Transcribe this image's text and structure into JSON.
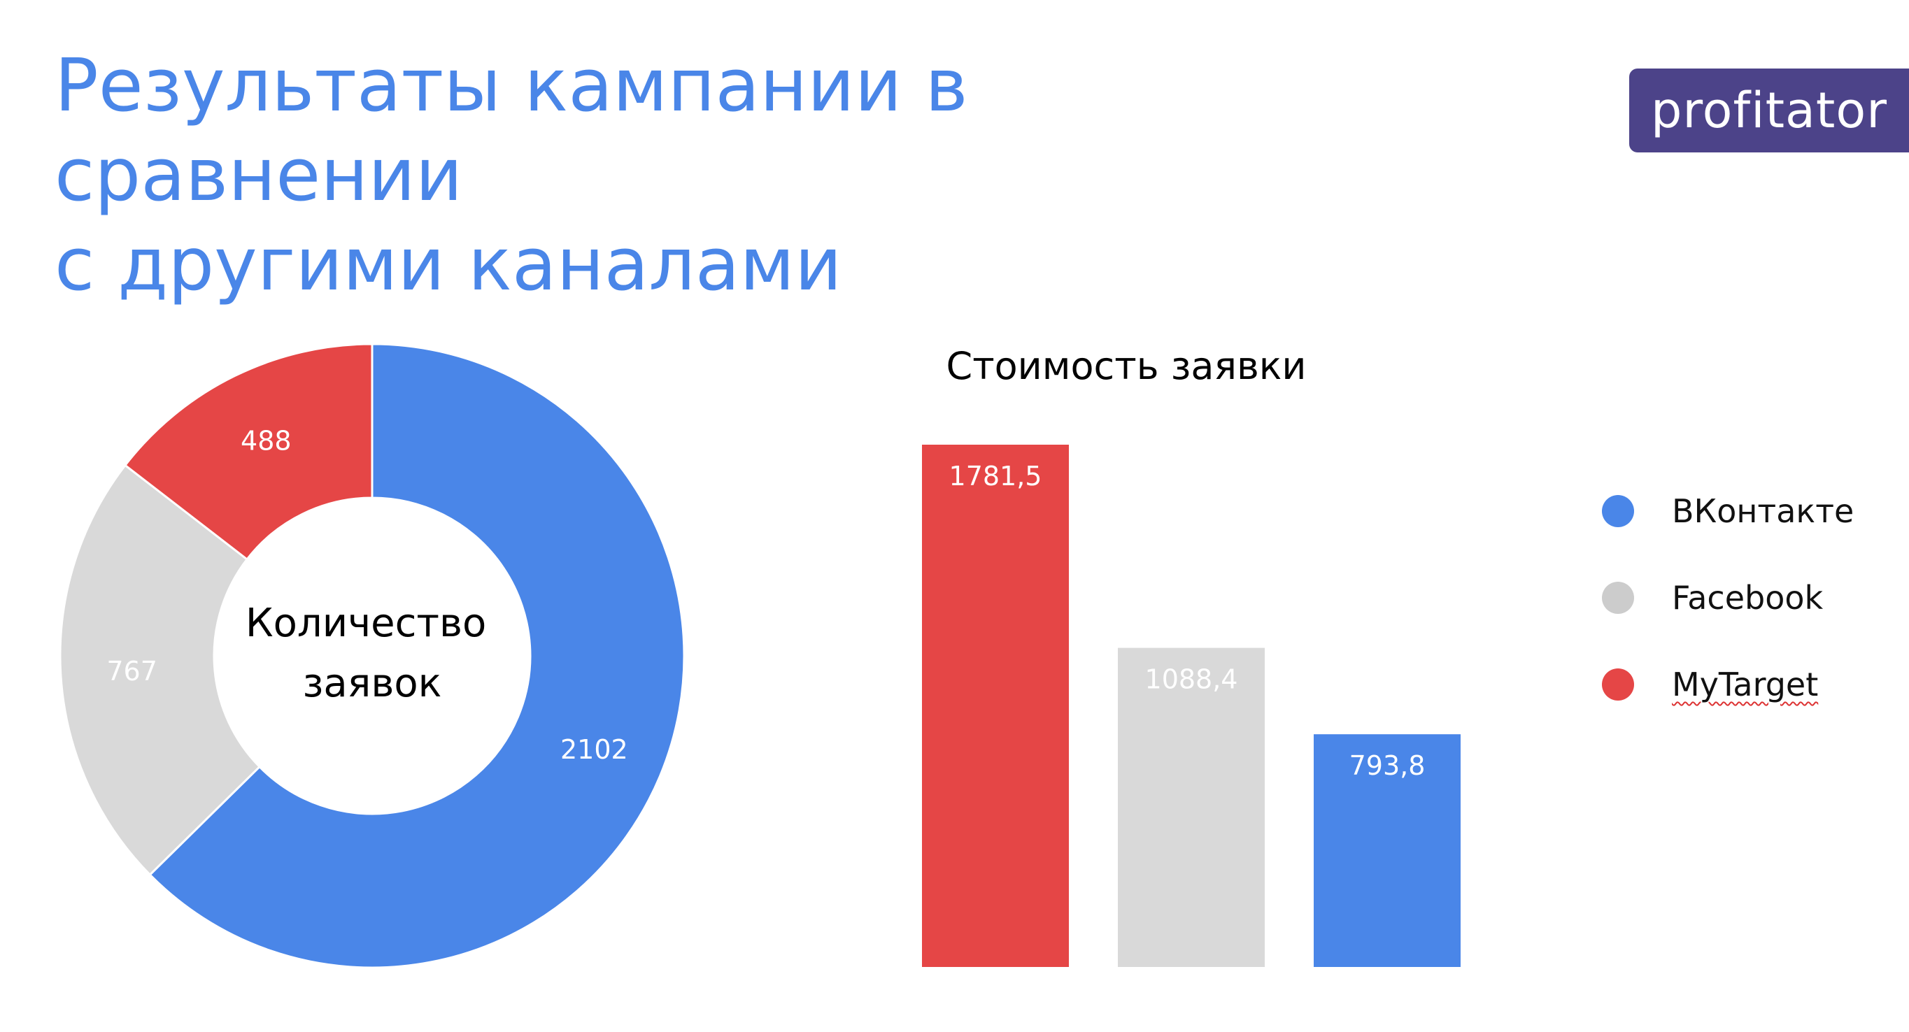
{
  "slide": {
    "title": "Результаты кампании в сравнении с другими каналами",
    "logo_text": "profitator"
  },
  "colors": {
    "title": "#4a86e8",
    "logo_bg": "#4c4389",
    "vkontakte": "#4a86e8",
    "facebook": "#d9d9d9",
    "mytarget": "#e54646"
  },
  "legend": [
    {
      "label": "ВКонтакте",
      "color": "#4a86e8"
    },
    {
      "label": "Facebook",
      "color": "#cccccc"
    },
    {
      "label": "MyTarget",
      "color": "#e54646"
    }
  ],
  "chart_data": [
    {
      "type": "pie",
      "title": "Количество заявок",
      "categories": [
        "ВКонтакте",
        "Facebook",
        "MyTarget"
      ],
      "values": [
        2102,
        767,
        488
      ],
      "value_labels": [
        "2102",
        "767",
        "488"
      ],
      "colors": [
        "#4a86e8",
        "#d9d9d9",
        "#e54646"
      ],
      "label_colors": [
        "#ffffff",
        "#ffffff",
        "#ffffff"
      ]
    },
    {
      "type": "bar",
      "title": "Стоимость заявки",
      "categories": [
        "MyTarget",
        "Facebook",
        "ВКонтакте"
      ],
      "values": [
        1781.5,
        1088.4,
        793.8
      ],
      "value_labels": [
        "1781,5",
        "1088,4",
        "793,8"
      ],
      "colors": [
        "#e54646",
        "#d9d9d9",
        "#4a86e8"
      ],
      "ylim": [
        0,
        1781.5
      ],
      "grid": false
    }
  ]
}
